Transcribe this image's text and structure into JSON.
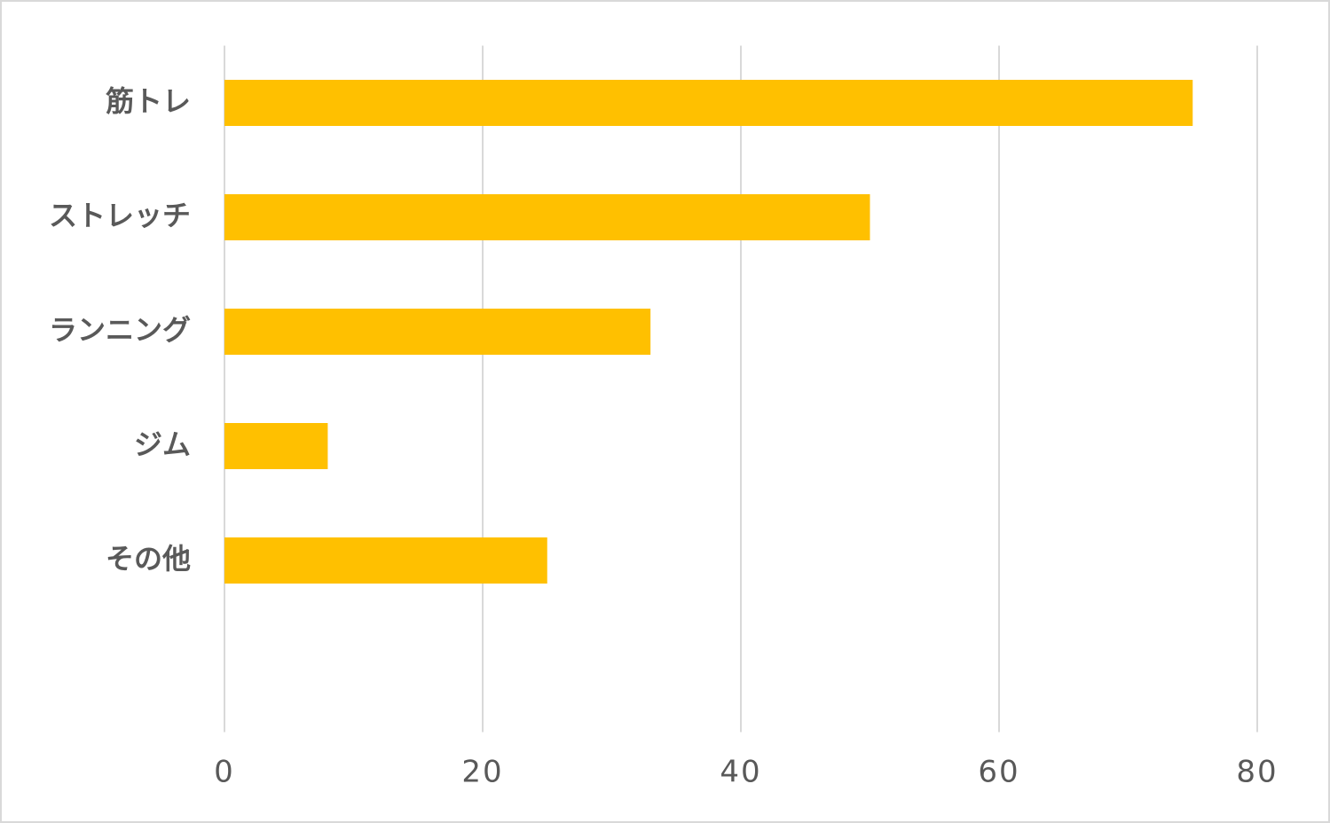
{
  "chart_data": {
    "type": "bar",
    "orientation": "horizontal",
    "categories": [
      "筋トレ",
      "ストレッチ",
      "ランニング",
      "ジム",
      "その他",
      null
    ],
    "values": [
      75,
      50,
      33,
      8,
      25,
      null
    ],
    "color": "#ffc000",
    "xlim": [
      0,
      80
    ],
    "xticks": [
      0,
      20,
      40,
      60,
      80
    ],
    "grid": true
  }
}
